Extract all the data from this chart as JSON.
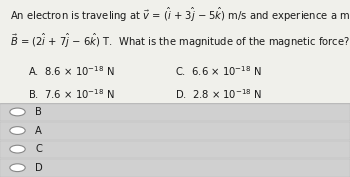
{
  "radio_options": [
    "B",
    "A",
    "C",
    "D"
  ],
  "bg_color": "#d8d8d8",
  "question_bg": "#f0f0eb",
  "radio_bg": "#d0d0d0",
  "radio_bg_alt": "#c8c8c8",
  "text_color": "#1a1a1a",
  "font_size_question": 7.2,
  "font_size_options": 7.2,
  "font_size_radio": 7.2
}
